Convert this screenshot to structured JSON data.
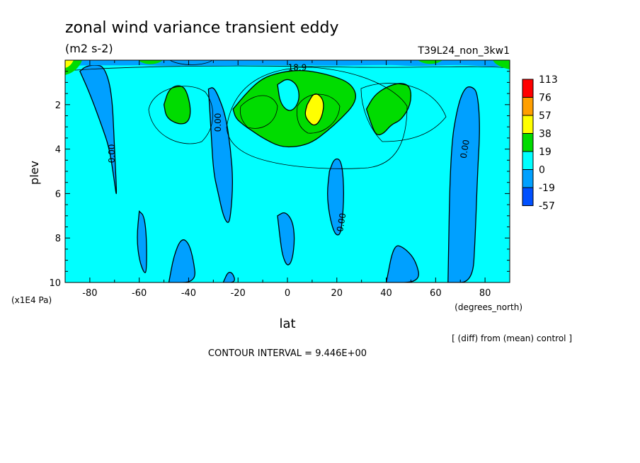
{
  "chart_data": {
    "type": "heatmap",
    "title": "zonal wind variance transient eddy",
    "subtitle": "(m2 s-2)",
    "run_label": "T39L24_non_3kw1",
    "xlabel": "lat",
    "xunits": "(degrees_north)",
    "ylabel": "plev",
    "yunits": "(x1E4 Pa)",
    "xlim": [
      -90,
      90
    ],
    "ylim": [
      10,
      0
    ],
    "y_inverted": true,
    "xticks": [
      -80,
      -60,
      -40,
      -20,
      0,
      20,
      40,
      60,
      80
    ],
    "xtick_labels": [
      "-80",
      "-60",
      "-40",
      "-20",
      "0",
      "20",
      "40",
      "60",
      "80"
    ],
    "yticks": [
      2,
      4,
      6,
      8,
      10
    ],
    "ytick_labels": [
      "2",
      "4",
      "6",
      "8",
      "10"
    ],
    "footer_right": "[ (diff) from (mean) control ]",
    "contour_interval_text": "CONTOUR INTERVAL = 9.446E+00",
    "contour_labels": [
      {
        "text": "0.00",
        "lat": -71,
        "p": 4.2,
        "angle": -90
      },
      {
        "text": "0.00",
        "lat": -28,
        "p": 2.8,
        "angle": -90
      },
      {
        "text": "0.00",
        "lat": 22,
        "p": 7.3,
        "angle": -80
      },
      {
        "text": "0.00",
        "lat": 72,
        "p": 4.0,
        "angle": -80
      },
      {
        "text": "18.9",
        "lat": 4,
        "p": 0.35,
        "angle": 0
      }
    ],
    "legend": {
      "levels": [
        "113",
        "76",
        "57",
        "38",
        "19",
        "0",
        "-19",
        "-57"
      ],
      "colors": [
        "#ff0000",
        "#ff9f00",
        "#ffff00",
        "#00dc00",
        "#00ffff",
        "#00a0ff",
        "#0050ff"
      ]
    },
    "regions": [
      {
        "level": "negative",
        "color": "#00a0ff",
        "lat": [
          -84,
          -82,
          -78,
          -74,
          -71,
          -70,
          -69,
          -70,
          -72,
          -75,
          -80,
          -84
        ],
        "p": [
          0.5,
          0.3,
          0.2,
          0.3,
          1.5,
          4.0,
          6.3,
          5.5,
          4.0,
          3.0,
          1.5,
          0.5
        ]
      },
      {
        "level": "negative",
        "color": "#00a0ff",
        "lat": [
          -32,
          -30,
          -28,
          -25,
          -23,
          -22,
          -23,
          -24,
          -26,
          -28,
          -30,
          -31,
          -32
        ],
        "p": [
          1.3,
          1.2,
          1.6,
          2.5,
          4.0,
          5.5,
          7.0,
          7.4,
          7.0,
          6.0,
          5.0,
          3.0,
          1.3
        ]
      },
      {
        "level": "negative",
        "color": "#00a0ff",
        "lat": [
          -60,
          -58,
          -57,
          -57,
          -58,
          -60,
          -61,
          -60
        ],
        "p": [
          6.8,
          7.0,
          8.0,
          9.5,
          9.6,
          9.0,
          8.0,
          6.8
        ]
      },
      {
        "level": "negative",
        "color": "#00a0ff",
        "lat": [
          -48,
          -46,
          -43,
          -40,
          -38,
          -37,
          -48
        ],
        "p": [
          10,
          8.8,
          8.0,
          8.2,
          9.0,
          10,
          10
        ]
      },
      {
        "level": "negative",
        "color": "#00a0ff",
        "lat": [
          -26,
          -24,
          -22,
          -21,
          -26
        ],
        "p": [
          10,
          9.5,
          9.6,
          10,
          10
        ]
      },
      {
        "level": "negative",
        "color": "#00a0ff",
        "lat": [
          -4,
          -1,
          2,
          3,
          2,
          0,
          -2,
          -3,
          -4
        ],
        "p": [
          7.0,
          6.8,
          7.2,
          8.0,
          9.0,
          9.3,
          8.8,
          8.0,
          7.0
        ]
      },
      {
        "level": "negative",
        "color": "#00a0ff",
        "lat": [
          17,
          19,
          22,
          23,
          22,
          21,
          19,
          17,
          16,
          17
        ],
        "p": [
          5.0,
          4.4,
          4.5,
          6.0,
          7.5,
          7.9,
          7.8,
          7.0,
          6.0,
          5.0
        ]
      },
      {
        "level": "negative",
        "color": "#00a0ff",
        "lat": [
          40,
          43,
          47,
          52,
          54,
          40
        ],
        "p": [
          10,
          8.3,
          8.4,
          9.0,
          10,
          10
        ]
      },
      {
        "level": "negative",
        "color": "#00a0ff",
        "lat": [
          65,
          66,
          69,
          72,
          75,
          77,
          78,
          77,
          76,
          75,
          65
        ],
        "p": [
          10,
          4.0,
          2.0,
          1.2,
          1.2,
          1.5,
          3.0,
          5.0,
          8.0,
          10,
          10
        ]
      },
      {
        "level": "positive",
        "color": "#00dc00",
        "lat": [
          -22,
          -16,
          -10,
          -3,
          4,
          10,
          18,
          25,
          28,
          27,
          22,
          16,
          10,
          4,
          -3,
          -10,
          -14,
          -18,
          -21,
          -22
        ],
        "p": [
          2.2,
          1.4,
          0.8,
          0.55,
          0.45,
          0.5,
          0.7,
          1.0,
          1.5,
          2.0,
          2.6,
          3.2,
          3.7,
          3.9,
          3.9,
          3.5,
          3.2,
          2.9,
          2.6,
          2.2
        ]
      },
      {
        "level": "positive",
        "color": "#00dc00",
        "lat": [
          -50,
          -48,
          -44,
          -41,
          -39,
          -40,
          -44,
          -49,
          -50
        ],
        "p": [
          2.0,
          1.3,
          1.1,
          1.3,
          2.2,
          2.8,
          2.9,
          2.6,
          2.0
        ]
      },
      {
        "level": "positive",
        "color": "#00dc00",
        "lat": [
          32,
          35,
          40,
          46,
          50,
          50,
          46,
          42,
          39,
          36,
          34,
          32
        ],
        "p": [
          2.2,
          1.6,
          1.2,
          1.0,
          1.2,
          2.0,
          2.7,
          2.9,
          3.3,
          3.4,
          2.9,
          2.2
        ]
      },
      {
        "level": "interior",
        "color": "#00ffff",
        "lat": [
          -4,
          0,
          4,
          5,
          3,
          0,
          -3,
          -4
        ],
        "p": [
          1.1,
          0.8,
          1.1,
          1.7,
          2.2,
          2.3,
          1.9,
          1.1
        ]
      },
      {
        "level": "high",
        "color": "#ffff00",
        "lat": [
          8,
          11,
          15,
          14,
          11,
          8,
          7,
          8
        ],
        "p": [
          2.0,
          1.4,
          1.8,
          2.6,
          3.0,
          2.7,
          2.4,
          2.0
        ]
      }
    ]
  }
}
